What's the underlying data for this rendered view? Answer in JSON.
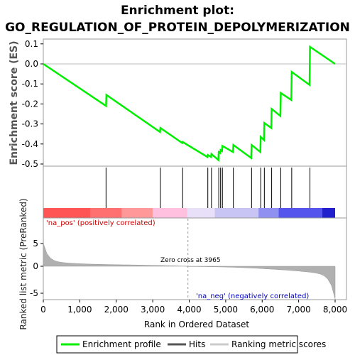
{
  "chart_data": {
    "type": "line",
    "title_line1": "Enrichment plot:",
    "title_line2": "GO_REGULATION_OF_PROTEIN_DEPOLYMERIZATION",
    "es_panel": {
      "ylabel": "Enrichment score (ES)",
      "yticks": [
        "0.1",
        "0.0",
        "-0.1",
        "-0.2",
        "-0.3",
        "-0.4",
        "-0.5"
      ],
      "ylim": [
        -0.5,
        0.12
      ],
      "line_color": "#00ff00",
      "points": [
        [
          0,
          0.0
        ],
        [
          1720,
          -0.21
        ],
        [
          1730,
          -0.155
        ],
        [
          3200,
          -0.34
        ],
        [
          3210,
          -0.32
        ],
        [
          3810,
          -0.395
        ],
        [
          3820,
          -0.39
        ],
        [
          4500,
          -0.465
        ],
        [
          4510,
          -0.455
        ],
        [
          4600,
          -0.465
        ],
        [
          4610,
          -0.45
        ],
        [
          4800,
          -0.48
        ],
        [
          4810,
          -0.44
        ],
        [
          4850,
          -0.445
        ],
        [
          4860,
          -0.43
        ],
        [
          4900,
          -0.435
        ],
        [
          4910,
          -0.41
        ],
        [
          5200,
          -0.44
        ],
        [
          5210,
          -0.405
        ],
        [
          5700,
          -0.47
        ],
        [
          5710,
          -0.405
        ],
        [
          5950,
          -0.44
        ],
        [
          5960,
          -0.365
        ],
        [
          6050,
          -0.38
        ],
        [
          6060,
          -0.295
        ],
        [
          6250,
          -0.32
        ],
        [
          6260,
          -0.225
        ],
        [
          6500,
          -0.26
        ],
        [
          6510,
          -0.145
        ],
        [
          6800,
          -0.18
        ],
        [
          6810,
          -0.04
        ],
        [
          7300,
          -0.105
        ],
        [
          7310,
          0.085
        ],
        [
          8000,
          0.0
        ]
      ]
    },
    "hits": [
      1720,
      3210,
      3820,
      4510,
      4610,
      4810,
      4860,
      4910,
      5210,
      5710,
      5960,
      6060,
      6260,
      6510,
      6810,
      7310
    ],
    "ranked_panel": {
      "ylabel": "Ranked list metric (PreRanked)",
      "yticks": [
        "5",
        "0",
        "-5"
      ],
      "ylim": [
        -6.5,
        9
      ],
      "zero_cross_label": "Zero cross at 3965",
      "zero_cross": 3965,
      "pos_label": "'na_pos' (positively correlated)",
      "neg_label": "'na_neg' (negatively correlated)"
    },
    "xlabel": "Rank in Ordered Dataset",
    "xticks": [
      "0",
      "1,000",
      "2,000",
      "3,000",
      "4,000",
      "5,000",
      "6,000",
      "7,000",
      "8,000"
    ],
    "xlim": [
      0,
      8000
    ],
    "n_genes": 8000,
    "legend": [
      "Enrichment profile",
      "Hits",
      "Ranking metric scores"
    ]
  }
}
